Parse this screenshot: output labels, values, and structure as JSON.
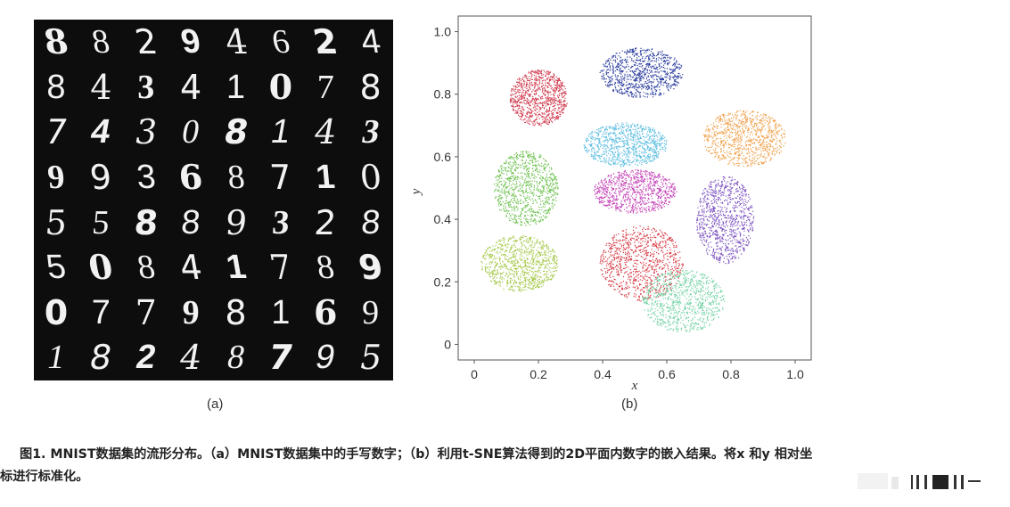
{
  "panel_a": {
    "label": "(a)",
    "digits": [
      [
        "8",
        "8",
        "2",
        "9",
        "4",
        "6",
        "2",
        "4"
      ],
      [
        "8",
        "4",
        "3",
        "4",
        "1",
        "0",
        "7",
        "8"
      ],
      [
        "7",
        "4",
        "3",
        "0",
        "8",
        "1",
        "4",
        "3"
      ],
      [
        "9",
        "9",
        "3",
        "6",
        "8",
        "7",
        "1",
        "0"
      ],
      [
        "5",
        "5",
        "8",
        "8",
        "9",
        "3",
        "2",
        "8"
      ],
      [
        "5",
        "0",
        "8",
        "4",
        "1",
        "7",
        "8",
        "9"
      ],
      [
        "0",
        "7",
        "7",
        "9",
        "8",
        "1",
        "6",
        "9"
      ],
      [
        "1",
        "8",
        "2",
        "4",
        "8",
        "7",
        "9",
        "5"
      ]
    ]
  },
  "panel_b": {
    "label": "(b)"
  },
  "chart_data": {
    "type": "scatter",
    "xlabel": "x",
    "ylabel": "y",
    "xlim": [
      -0.05,
      1.05
    ],
    "ylim": [
      -0.05,
      1.05
    ],
    "xticks": [
      "0",
      "0.2",
      "0.4",
      "0.6",
      "0.8",
      "1.0"
    ],
    "yticks": [
      "0",
      "0.2",
      "0.4",
      "0.6",
      "0.8",
      "1.0"
    ],
    "grid": false,
    "clusters": [
      {
        "color": "#2c3f9f",
        "center": [
          0.52,
          0.87
        ],
        "spread": [
          0.13,
          0.08
        ]
      },
      {
        "color": "#d03a4e",
        "center": [
          0.2,
          0.79
        ],
        "spread": [
          0.09,
          0.09
        ]
      },
      {
        "color": "#5bbde0",
        "center": [
          0.47,
          0.64
        ],
        "spread": [
          0.13,
          0.07
        ]
      },
      {
        "color": "#f0a04b",
        "center": [
          0.84,
          0.66
        ],
        "spread": [
          0.13,
          0.09
        ]
      },
      {
        "color": "#6ac04b",
        "center": [
          0.16,
          0.5
        ],
        "spread": [
          0.1,
          0.12
        ]
      },
      {
        "color": "#c547b8",
        "center": [
          0.5,
          0.49
        ],
        "spread": [
          0.13,
          0.07
        ]
      },
      {
        "color": "#7a4fc0",
        "center": [
          0.78,
          0.4
        ],
        "spread": [
          0.09,
          0.14
        ]
      },
      {
        "color": "#a5c94a",
        "center": [
          0.14,
          0.26
        ],
        "spread": [
          0.12,
          0.09
        ]
      },
      {
        "color": "#d63540",
        "center": [
          0.52,
          0.26
        ],
        "spread": [
          0.13,
          0.12
        ]
      },
      {
        "color": "#75d3a6",
        "center": [
          0.65,
          0.14
        ],
        "spread": [
          0.13,
          0.1
        ]
      }
    ]
  },
  "caption": {
    "line1": "图1. MNIST数据集的流形分布。（a）MNIST数据集中的手写数字；（b）利用t-SNE算法得到的2D平面内数字的嵌入结果。将x 和y 相对坐",
    "line2": "标进行标准化。"
  }
}
